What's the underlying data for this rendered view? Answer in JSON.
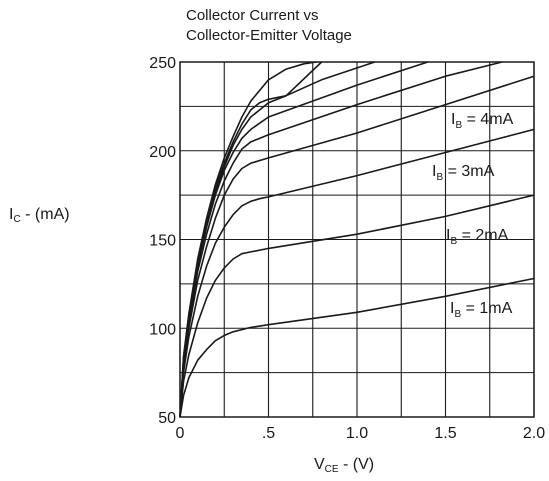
{
  "chart_data": {
    "type": "line",
    "title_lines": [
      "Collector Current vs",
      "Collector-Emitter Voltage"
    ],
    "xlabel": {
      "main": "V",
      "sub": "CE",
      "suffix": " - (V)"
    },
    "ylabel": {
      "main": "I",
      "sub": "C",
      "suffix": " - (mA)"
    },
    "xlim": [
      0,
      2.0
    ],
    "ylim": [
      50,
      250
    ],
    "x_ticks": [
      {
        "value": 0,
        "label": "0"
      },
      {
        "value": 0.5,
        "label": ".5"
      },
      {
        "value": 1.0,
        "label": "1.0"
      },
      {
        "value": 1.5,
        "label": "1.5"
      },
      {
        "value": 2.0,
        "label": "2.0"
      }
    ],
    "y_ticks": [
      {
        "value": 50,
        "label": "50"
      },
      {
        "value": 100,
        "label": "100"
      },
      {
        "value": 150,
        "label": "150"
      },
      {
        "value": 200,
        "label": "200"
      },
      {
        "value": 250,
        "label": "250"
      }
    ],
    "grid_x": [
      0,
      0.25,
      0.5,
      0.75,
      1.0,
      1.25,
      1.5,
      1.75,
      2.0
    ],
    "grid_y": [
      50,
      75,
      100,
      125,
      150,
      175,
      200,
      225,
      250
    ],
    "grid": true,
    "line_color": "#1a1a1a",
    "series": [
      {
        "name": "IB = 1mA",
        "label": {
          "main": "I",
          "sub": "B",
          "suffix": " = 1mA"
        },
        "x": [
          0.0,
          0.02,
          0.05,
          0.1,
          0.15,
          0.2,
          0.25,
          0.3,
          0.4,
          0.5,
          1.0,
          1.5,
          2.0
        ],
        "y": [
          50,
          62,
          72,
          82,
          88,
          93,
          96,
          98,
          100.5,
          102,
          109,
          118,
          128
        ]
      },
      {
        "name": "IB = 2mA",
        "label": {
          "main": "I",
          "sub": "B",
          "suffix": " = 2mA"
        },
        "x": [
          0.0,
          0.02,
          0.05,
          0.1,
          0.15,
          0.2,
          0.25,
          0.3,
          0.35,
          0.4,
          0.5,
          1.0,
          1.5,
          2.0
        ],
        "y": [
          50,
          70,
          85,
          103,
          117,
          127,
          134,
          139,
          142,
          143,
          145,
          153,
          163,
          175
        ]
      },
      {
        "name": "IB = 3mA",
        "label": {
          "main": "I",
          "sub": "B",
          "suffix": " = 3mA"
        },
        "x": [
          0.0,
          0.02,
          0.05,
          0.1,
          0.15,
          0.2,
          0.25,
          0.3,
          0.35,
          0.4,
          0.45,
          0.5,
          1.0,
          1.5,
          2.0
        ],
        "y": [
          50,
          75,
          95,
          118,
          135,
          148,
          157,
          164,
          169,
          171.5,
          173,
          174,
          186,
          199,
          212
        ]
      },
      {
        "x": [
          0.0,
          0.02,
          0.05,
          0.1,
          0.15,
          0.2,
          0.25,
          0.3,
          0.35,
          0.4,
          0.5,
          1.0,
          1.5,
          2.0
        ],
        "y": [
          50,
          78,
          100,
          127,
          146,
          162,
          175,
          184,
          190,
          193,
          196,
          210,
          226,
          242
        ]
      },
      {
        "name": "IB = 4mA",
        "label": {
          "main": "I",
          "sub": "B",
          "suffix": " = 4mA"
        },
        "x": [
          0.0,
          0.02,
          0.05,
          0.1,
          0.15,
          0.2,
          0.25,
          0.3,
          0.35,
          0.4,
          0.5,
          1.0,
          1.5,
          1.82
        ],
        "y": [
          50,
          80,
          103,
          132,
          153,
          170,
          183,
          193,
          201,
          205,
          209,
          226,
          242,
          250
        ]
      },
      {
        "x": [
          0.0,
          0.02,
          0.05,
          0.1,
          0.15,
          0.2,
          0.25,
          0.3,
          0.35,
          0.4,
          0.5,
          1.0,
          1.4
        ],
        "y": [
          50,
          81,
          105,
          135,
          157,
          175,
          189,
          199,
          207,
          212,
          219,
          237,
          250
        ]
      },
      {
        "x": [
          0.0,
          0.02,
          0.05,
          0.1,
          0.15,
          0.2,
          0.25,
          0.3,
          0.35,
          0.4,
          0.5,
          0.6,
          0.8,
          1.1
        ],
        "y": [
          50,
          82,
          106,
          137,
          159,
          177,
          191,
          203,
          212,
          219,
          227,
          231,
          240,
          250
        ]
      },
      {
        "x": [
          0.0,
          0.02,
          0.05,
          0.1,
          0.15,
          0.2,
          0.25,
          0.3,
          0.35,
          0.4,
          0.45,
          0.5,
          0.6,
          0.8
        ],
        "y": [
          50,
          83,
          107,
          138,
          160,
          179,
          193,
          205,
          215,
          223,
          227,
          229,
          231,
          250
        ]
      },
      {
        "x": [
          0.0,
          0.02,
          0.05,
          0.1,
          0.15,
          0.2,
          0.25,
          0.3,
          0.35,
          0.4,
          0.5,
          0.6,
          0.7,
          0.77
        ],
        "y": [
          50,
          84,
          108,
          139,
          162,
          181,
          196,
          208,
          219,
          228,
          240,
          246,
          249,
          250
        ]
      }
    ]
  }
}
